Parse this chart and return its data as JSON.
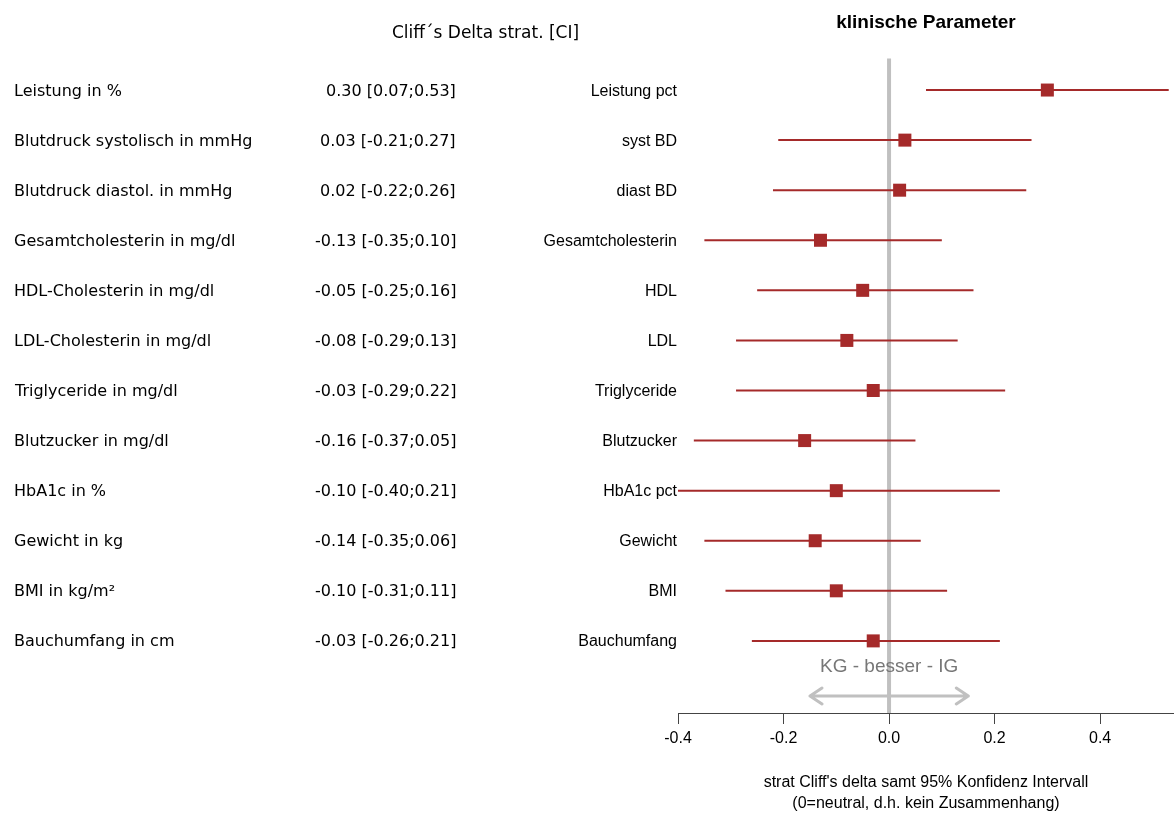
{
  "chart_data": {
    "type": "scatter",
    "orientation": "horizontal",
    "title": "klinische Parameter",
    "xlabel": "strat Cliff's delta samt 95% Konfidenz Intervall\n(0=neutral, d.h. kein Zusammenhang)",
    "categories": [
      "Leistung pct",
      "syst BD",
      "diast BD",
      "Gesamtcholesterin",
      "HDL",
      "LDL",
      "Triglyceride",
      "Blutzucker",
      "HbA1c pct",
      "Gewicht",
      "BMI",
      "Bauchumfang"
    ],
    "y2_categories": [
      "Leistung in %",
      "Blutdruck systolisch in mmHg",
      "Blutdruck diastol. in mmHg",
      "Gesamtcholesterin in mg/dl",
      "HDL-Cholesterin in mg/dl",
      "LDL-Cholesterin in mg/dl",
      "Triglyceride in mg/dl",
      "Blutzucker in mg/dl",
      "HbA1c in %",
      "Gewicht in kg",
      "BMI in kg/m²",
      "Bauchumfang in cm"
    ],
    "values": [
      0.3,
      0.03,
      0.02,
      -0.13,
      -0.05,
      -0.08,
      -0.03,
      -0.16,
      -0.1,
      -0.14,
      -0.1,
      -0.03
    ],
    "errors": [
      [
        0.07,
        0.53
      ],
      [
        -0.21,
        0.27
      ],
      [
        -0.22,
        0.26
      ],
      [
        -0.35,
        0.1
      ],
      [
        -0.25,
        0.16
      ],
      [
        -0.29,
        0.13
      ],
      [
        -0.29,
        0.22
      ],
      [
        -0.37,
        0.05
      ],
      [
        -0.4,
        0.21
      ],
      [
        -0.35,
        0.06
      ],
      [
        -0.31,
        0.11
      ],
      [
        -0.26,
        0.21
      ]
    ],
    "value_labels": [
      "0.30 [0.07;0.53]",
      "0.03 [-0.21;0.27]",
      "0.02 [-0.22;0.26]",
      "-0.13 [-0.35;0.10]",
      "-0.05 [-0.25;0.16]",
      "-0.08 [-0.29;0.13]",
      "-0.03 [-0.29;0.22]",
      "-0.16 [-0.37;0.05]",
      "-0.10 [-0.40;0.21]",
      "-0.14 [-0.35;0.06]",
      "-0.10 [-0.31;0.11]",
      "-0.03 [-0.26;0.21]"
    ],
    "color": "#a52a2a",
    "marker": "square",
    "xlim": [
      -0.4,
      0.54
    ],
    "xticks": [
      -0.4,
      -0.2,
      {
        "value": 0,
        "label": "0.0"
      },
      0.2,
      0.4
    ],
    "ref_lines": [
      {
        "axis": "x",
        "value": 0,
        "color": "#c0c0c0"
      }
    ],
    "annotations": [
      "Cliff´s Delta strat. [CI]",
      {
        "text": "KG - besser - IG",
        "x": 0
      }
    ],
    "legend": false
  }
}
